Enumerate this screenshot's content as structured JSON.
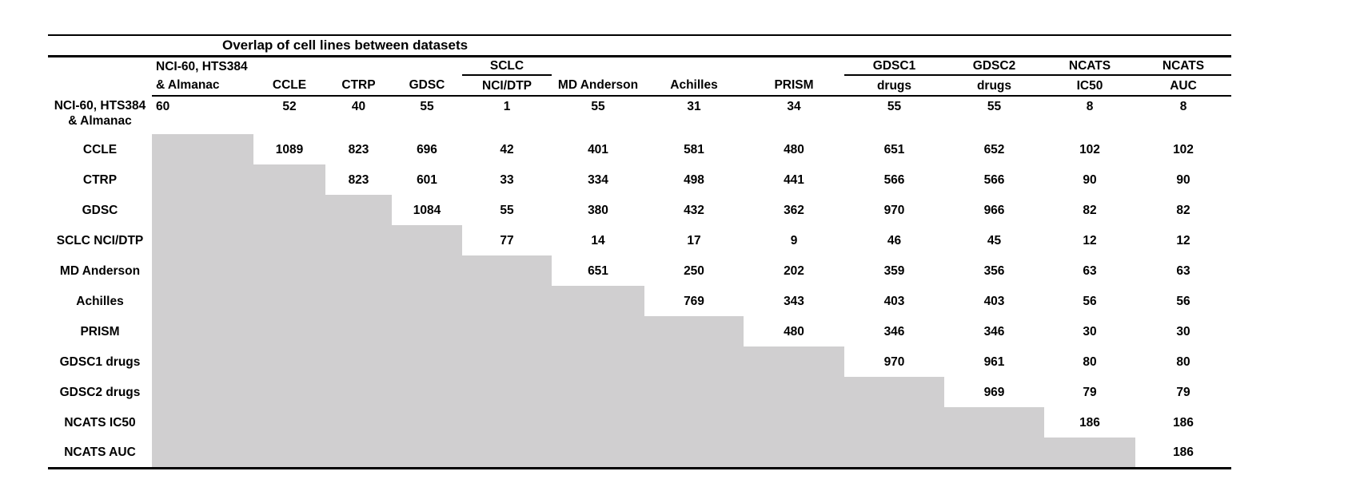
{
  "chart_data": {
    "type": "table",
    "title": "Overlap of cell lines between datasets",
    "shade_color": "#d0cfd0",
    "layout_hint": "upper-triangular overlap matrix; lower triangle shaded gray; horizontal rules only",
    "columns": [
      {
        "top": "NCI-60, HTS384",
        "bottom": "& Almanac",
        "underline_top": false,
        "align": "left"
      },
      {
        "top": "",
        "bottom": "CCLE",
        "underline_top": false
      },
      {
        "top": "",
        "bottom": "CTRP",
        "underline_top": false
      },
      {
        "top": "",
        "bottom": "GDSC",
        "underline_top": false
      },
      {
        "top": "SCLC",
        "bottom": "NCI/DTP",
        "underline_top": true
      },
      {
        "top": "",
        "bottom": "MD Anderson",
        "underline_top": false
      },
      {
        "top": "",
        "bottom": "Achilles",
        "underline_top": false
      },
      {
        "top": "",
        "bottom": "PRISM",
        "underline_top": false
      },
      {
        "top": "GDSC1",
        "bottom": "drugs",
        "underline_top": true
      },
      {
        "top": "GDSC2",
        "bottom": "drugs",
        "underline_top": true
      },
      {
        "top": "NCATS",
        "bottom": "IC50",
        "underline_top": true
      },
      {
        "top": "NCATS",
        "bottom": "AUC",
        "underline_top": true
      }
    ],
    "rows": [
      {
        "label_lines": [
          "NCI-60, HTS384",
          "& Almanac"
        ],
        "cells": [
          60,
          52,
          40,
          55,
          1,
          55,
          31,
          34,
          55,
          55,
          8,
          8
        ]
      },
      {
        "label_lines": [
          "CCLE"
        ],
        "cells": [
          null,
          1089,
          823,
          696,
          42,
          401,
          581,
          480,
          651,
          652,
          102,
          102
        ]
      },
      {
        "label_lines": [
          "CTRP"
        ],
        "cells": [
          null,
          null,
          823,
          601,
          33,
          334,
          498,
          441,
          566,
          566,
          90,
          90
        ]
      },
      {
        "label_lines": [
          "GDSC"
        ],
        "cells": [
          null,
          null,
          null,
          1084,
          55,
          380,
          432,
          362,
          970,
          966,
          82,
          82
        ]
      },
      {
        "label_lines": [
          "SCLC NCI/DTP"
        ],
        "cells": [
          null,
          null,
          null,
          null,
          77,
          14,
          17,
          9,
          46,
          45,
          12,
          12
        ]
      },
      {
        "label_lines": [
          "MD Anderson"
        ],
        "cells": [
          null,
          null,
          null,
          null,
          null,
          651,
          250,
          202,
          359,
          356,
          63,
          63
        ]
      },
      {
        "label_lines": [
          "Achilles"
        ],
        "cells": [
          null,
          null,
          null,
          null,
          null,
          null,
          769,
          343,
          403,
          403,
          56,
          56
        ]
      },
      {
        "label_lines": [
          "PRISM"
        ],
        "cells": [
          null,
          null,
          null,
          null,
          null,
          null,
          null,
          480,
          346,
          346,
          30,
          30
        ]
      },
      {
        "label_lines": [
          "GDSC1 drugs"
        ],
        "cells": [
          null,
          null,
          null,
          null,
          null,
          null,
          null,
          null,
          970,
          961,
          80,
          80
        ]
      },
      {
        "label_lines": [
          "GDSC2 drugs"
        ],
        "cells": [
          null,
          null,
          null,
          null,
          null,
          null,
          null,
          null,
          null,
          969,
          79,
          79
        ]
      },
      {
        "label_lines": [
          "NCATS IC50"
        ],
        "cells": [
          null,
          null,
          null,
          null,
          null,
          null,
          null,
          null,
          null,
          null,
          186,
          186
        ]
      },
      {
        "label_lines": [
          "NCATS AUC"
        ],
        "cells": [
          null,
          null,
          null,
          null,
          null,
          null,
          null,
          null,
          null,
          null,
          null,
          186
        ]
      }
    ]
  }
}
